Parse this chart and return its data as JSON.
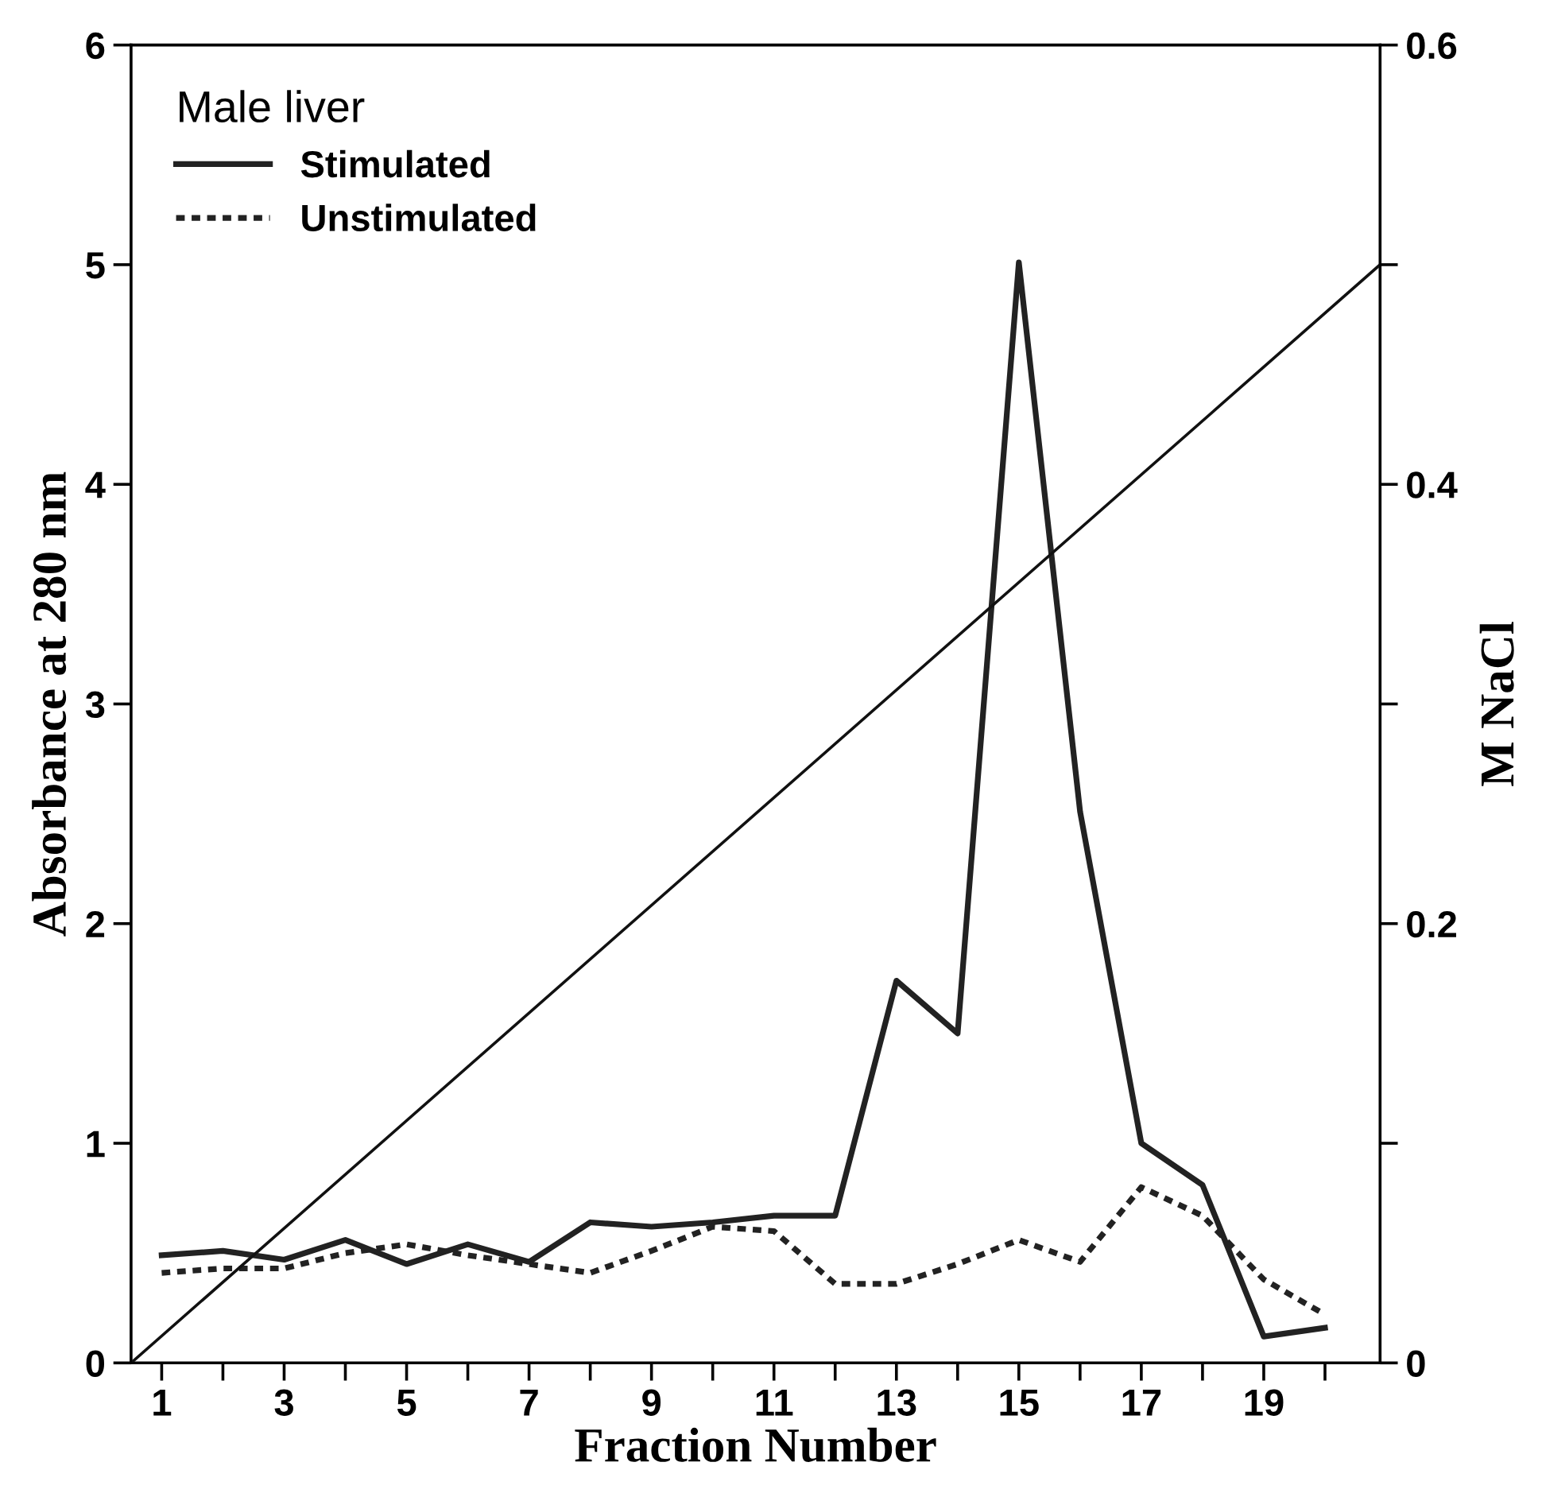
{
  "chart_data": {
    "type": "line",
    "xlabel": "Fraction Number",
    "ylabel": "Absorbance at 280 nm",
    "y2label": "M NaCl",
    "legend_title": "Male liver",
    "legend": "top left",
    "x": [
      1,
      2,
      3,
      4,
      5,
      6,
      7,
      8,
      9,
      10,
      11,
      12,
      13,
      14,
      15,
      16,
      17,
      18,
      19,
      20
    ],
    "xlim": [
      0.5,
      20.9
    ],
    "xticks": [
      1,
      {
        "value": 2,
        "label": null
      },
      3,
      {
        "value": 4,
        "label": null
      },
      5,
      {
        "value": 6,
        "label": null
      },
      7,
      {
        "value": 8,
        "label": null
      },
      9,
      {
        "value": 10,
        "label": null
      },
      11,
      {
        "value": 12,
        "label": null
      },
      13,
      {
        "value": 14,
        "label": null
      },
      15,
      {
        "value": 16,
        "label": null
      },
      17,
      {
        "value": 18,
        "label": null
      },
      19,
      {
        "value": 20,
        "label": null
      }
    ],
    "ylim": [
      0,
      6
    ],
    "yticks": [
      0,
      1,
      2,
      3,
      4,
      5,
      6
    ],
    "y2lim": [
      0,
      0.6
    ],
    "y2ticks": [
      0,
      {
        "value": 0.1,
        "label": null
      },
      0.2,
      {
        "value": 0.3,
        "label": null
      },
      0.4,
      {
        "value": 0.5,
        "label": null
      },
      0.6
    ],
    "series": [
      {
        "name": "Stimulated",
        "color": "#222222",
        "line_style": "solid",
        "values": [
          0.49,
          0.51,
          0.47,
          0.56,
          0.45,
          0.54,
          0.46,
          0.64,
          0.62,
          0.64,
          0.67,
          0.67,
          1.74,
          1.5,
          5.01,
          2.51,
          1.0,
          0.81,
          0.12,
          0.16
        ]
      },
      {
        "name": "Unstimulated",
        "color": "#222222",
        "line_style": "dotted",
        "values": [
          0.41,
          0.43,
          0.43,
          0.5,
          0.54,
          0.49,
          0.45,
          0.41,
          0.51,
          0.62,
          0.6,
          0.36,
          0.36,
          0.45,
          0.56,
          0.46,
          0.8,
          0.67,
          0.38,
          0.22
        ]
      },
      {
        "color": "#111111",
        "line_style": "solid",
        "axis": "y2",
        "x": [
          0.5,
          20.9
        ],
        "values": [
          0,
          0.5
        ]
      }
    ]
  }
}
